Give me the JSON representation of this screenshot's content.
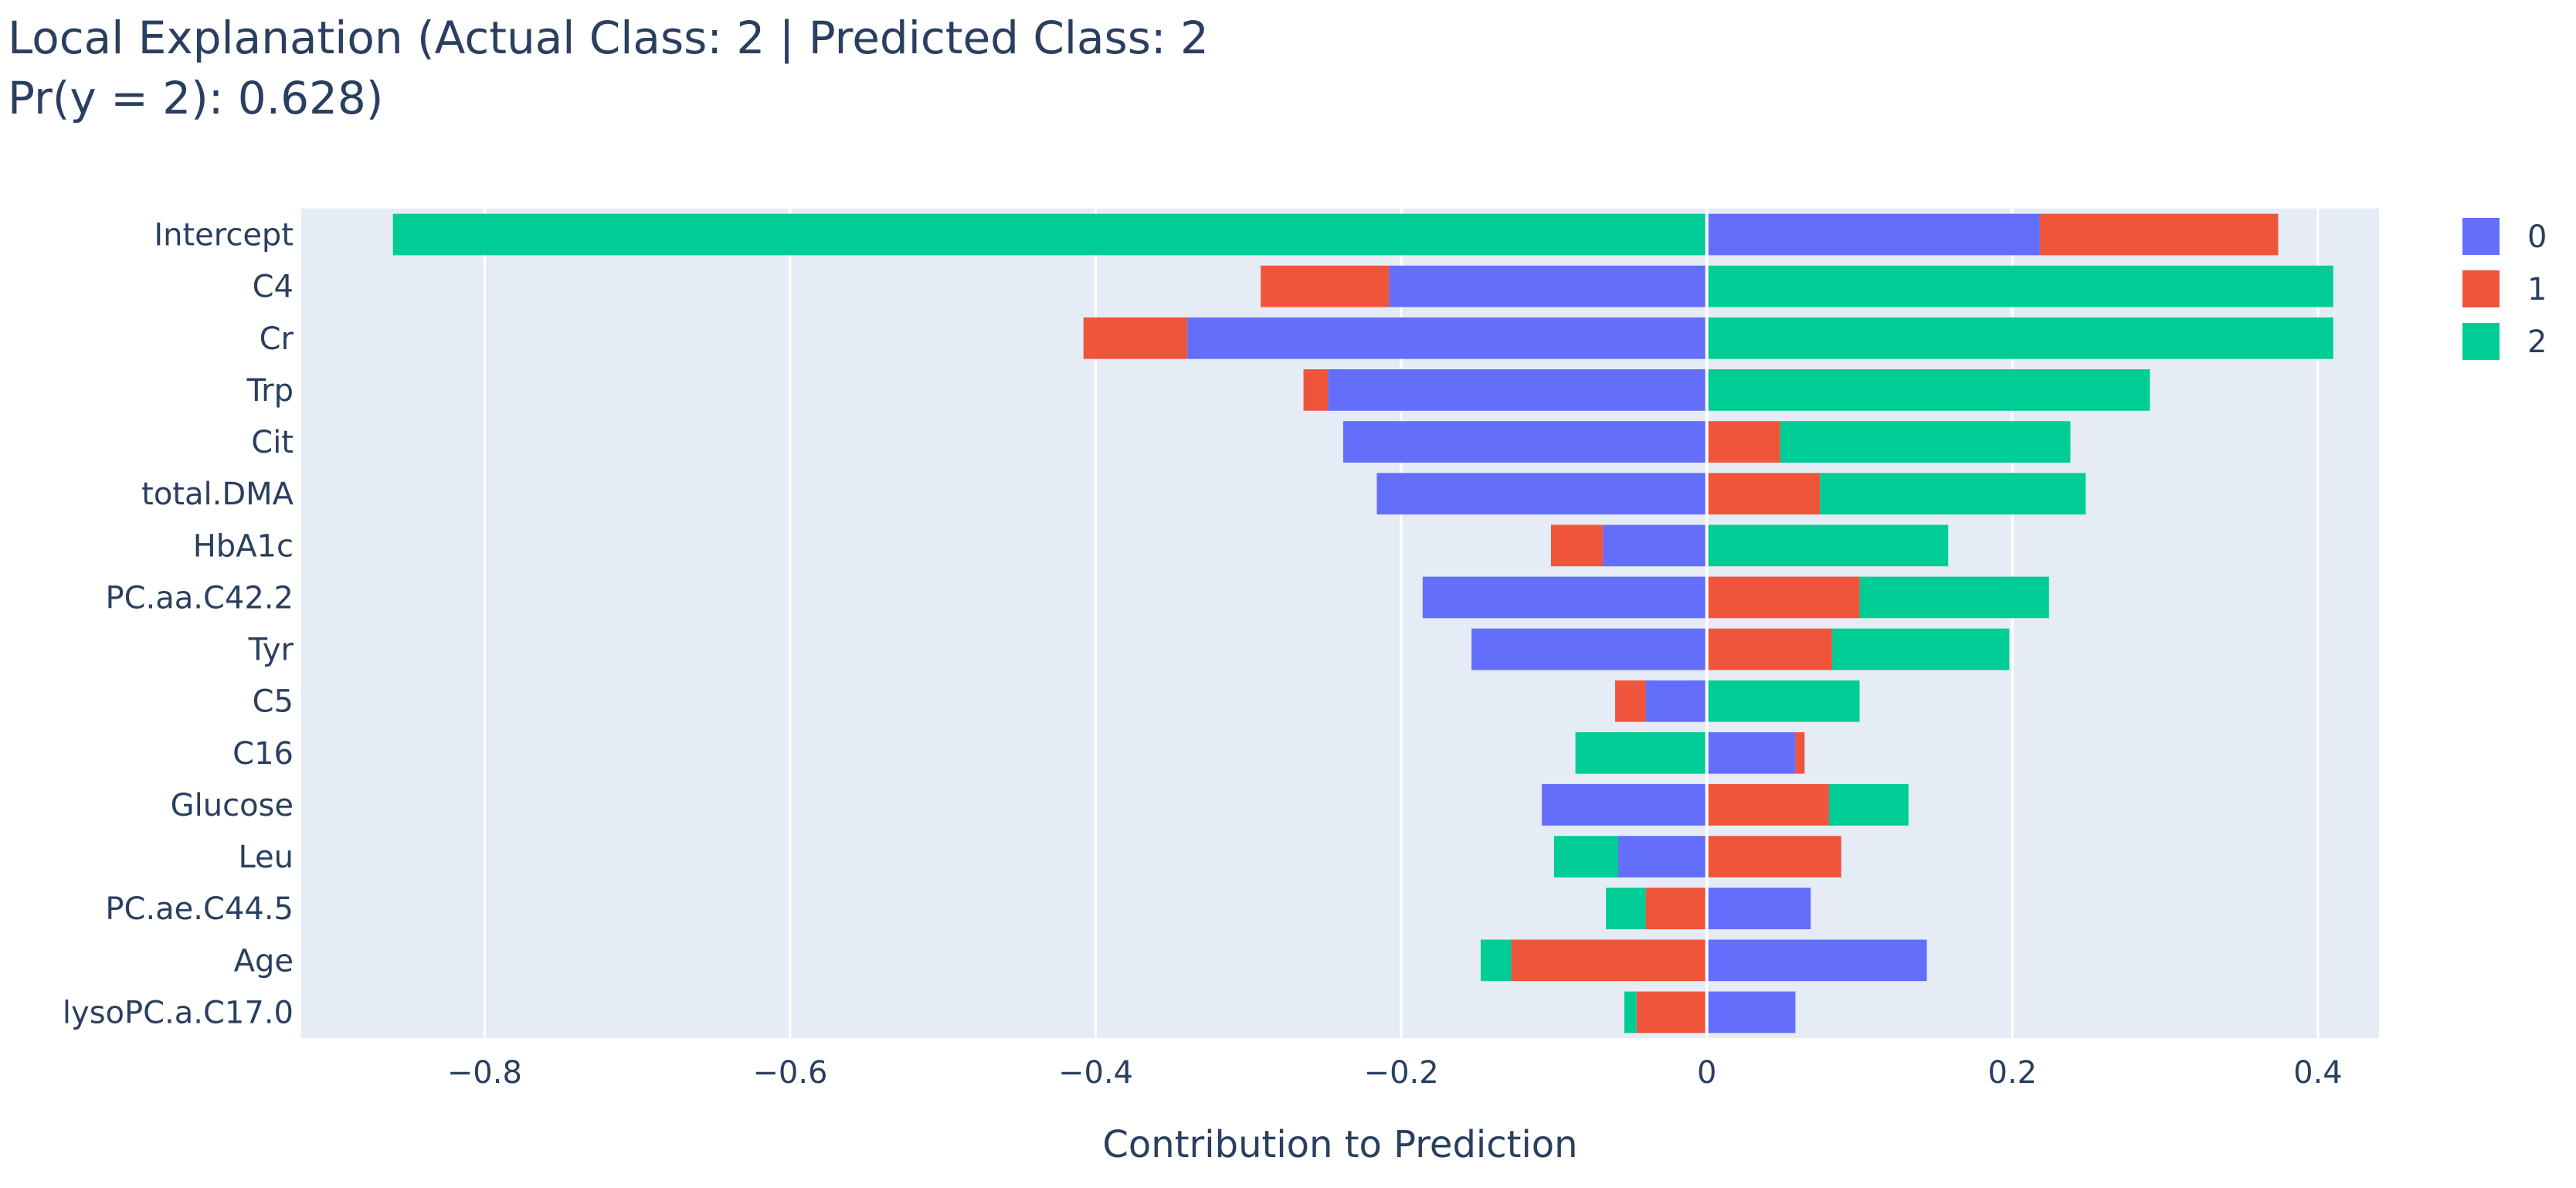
{
  "chart_data": {
    "type": "bar",
    "orientation": "horizontal",
    "barmode": "relative",
    "title_line1": "Local Explanation (Actual Class: 2 | Predicted Class: 2",
    "title_line2": "Pr(y = 2): 0.628)",
    "xlabel": "Contribution to Prediction",
    "ylabel": "",
    "xlim": [
      -0.92,
      0.44
    ],
    "xticks": [
      -0.8,
      -0.6,
      -0.4,
      -0.2,
      0,
      0.2,
      0.4
    ],
    "xtick_labels": [
      "−0.8",
      "−0.6",
      "−0.4",
      "−0.2",
      "0",
      "0.2",
      "0.4"
    ],
    "grid": true,
    "legend_position": "top-right",
    "categories": [
      "Intercept",
      "C4",
      "Cr",
      "Trp",
      "Cit",
      "total.DMA",
      "HbA1c",
      "PC.aa.C42.2",
      "Tyr",
      "C5",
      "C16",
      "Glucose",
      "Leu",
      "PC.ae.C44.5",
      "Age",
      "lysoPC.a.C17.0"
    ],
    "series": [
      {
        "name": "0",
        "color": "#636efa",
        "values": [
          0.218,
          -0.208,
          -0.34,
          -0.248,
          -0.238,
          -0.216,
          -0.068,
          -0.186,
          -0.154,
          -0.04,
          0.058,
          -0.108,
          -0.058,
          0.068,
          0.144,
          0.058
        ]
      },
      {
        "name": "1",
        "color": "#ef553b",
        "values": [
          0.156,
          -0.084,
          -0.068,
          -0.016,
          0.048,
          0.074,
          -0.034,
          0.1,
          0.082,
          -0.02,
          0.006,
          0.08,
          0.088,
          -0.04,
          -0.128,
          -0.046
        ]
      },
      {
        "name": "2",
        "color": "#00cc96",
        "values": [
          -0.86,
          0.41,
          0.41,
          0.29,
          0.19,
          0.174,
          0.158,
          0.124,
          0.116,
          0.1,
          -0.086,
          0.052,
          -0.042,
          -0.026,
          -0.02,
          -0.008
        ]
      }
    ]
  }
}
